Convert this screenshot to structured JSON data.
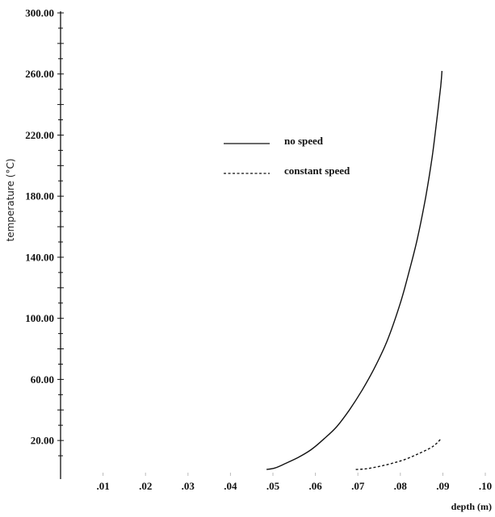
{
  "chart_data": {
    "type": "line",
    "title": "",
    "xlabel": "depth (m)",
    "ylabel": "temperature (°C)",
    "xlim": [
      0.0,
      0.1
    ],
    "ylim": [
      0,
      300
    ],
    "x_tick_labels": [
      ".01",
      ".02",
      ".03",
      ".04",
      ".05",
      ".06",
      ".07",
      ".08",
      ".09",
      ".10"
    ],
    "x_tick_values": [
      0.01,
      0.02,
      0.03,
      0.04,
      0.05,
      0.06,
      0.07,
      0.08,
      0.09,
      0.1
    ],
    "y_tick_labels": [
      "20.00",
      "60.00",
      "100.00",
      "140.00",
      "180.00",
      "220.00",
      "260.00",
      "300.00"
    ],
    "y_tick_values": [
      20,
      60,
      100,
      140,
      180,
      220,
      260,
      300
    ],
    "grid": false,
    "legend_position": "upper-center",
    "series": [
      {
        "name": "no speed",
        "style": "solid",
        "color": "#111111",
        "x": [
          0.0485,
          0.0505,
          0.053,
          0.056,
          0.059,
          0.062,
          0.065,
          0.068,
          0.071,
          0.074,
          0.077,
          0.08,
          0.082,
          0.084,
          0.086,
          0.0875,
          0.0885,
          0.0895,
          0.0898
        ],
        "y": [
          1,
          2,
          5,
          9,
          14,
          21,
          29,
          40,
          53,
          68,
          86,
          110,
          130,
          152,
          180,
          206,
          228,
          252,
          262
        ]
      },
      {
        "name": "constant speed",
        "style": "dashed",
        "color": "#111111",
        "x": [
          0.0695,
          0.072,
          0.075,
          0.078,
          0.081,
          0.084,
          0.087,
          0.0885,
          0.0895
        ],
        "y": [
          1,
          1.5,
          3,
          5,
          7.5,
          11,
          15,
          18,
          21
        ]
      }
    ]
  }
}
